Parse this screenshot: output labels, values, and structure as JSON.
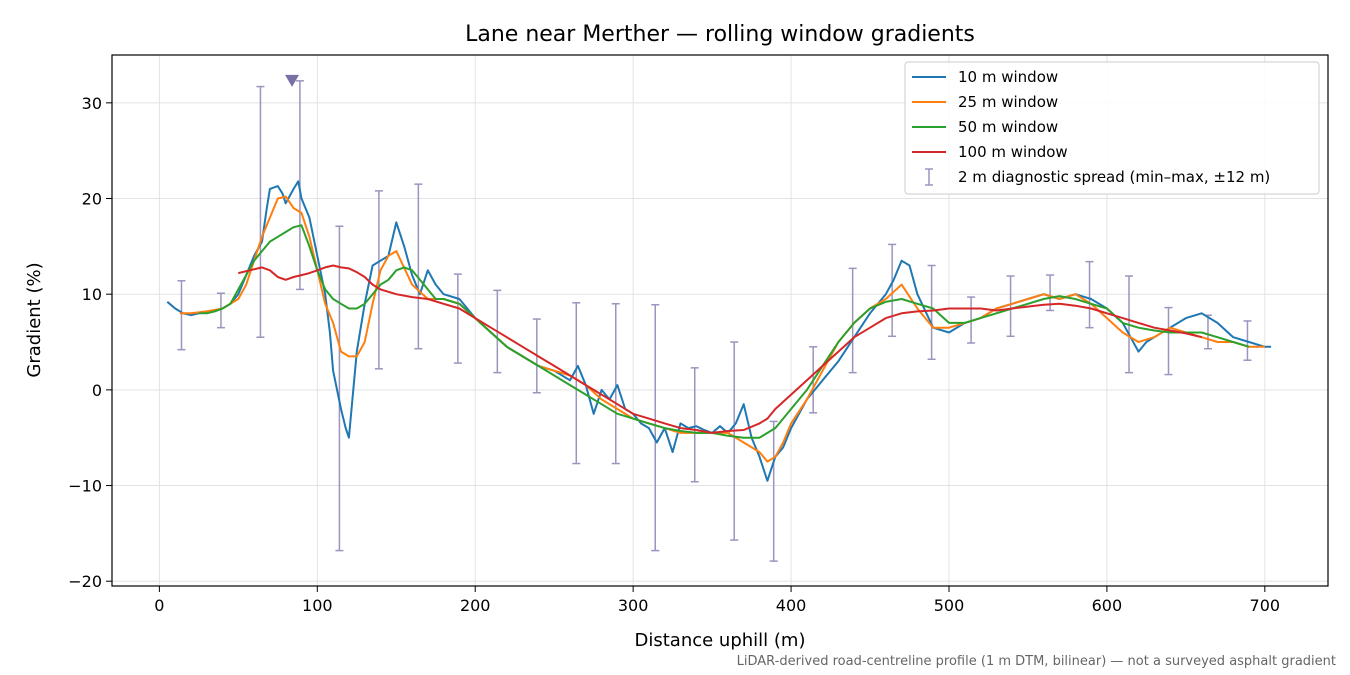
{
  "chart_data": {
    "type": "line",
    "title": "Lane near Merther — rolling window gradients",
    "xlabel": "Distance uphill (m)",
    "ylabel": "Gradient (%)",
    "xlim": [
      -30,
      740
    ],
    "ylim": [
      -20.5,
      35
    ],
    "xticks": [
      0,
      100,
      200,
      300,
      400,
      500,
      600,
      700
    ],
    "yticks": [
      -20,
      -10,
      0,
      10,
      20,
      30
    ],
    "grid": true,
    "legend_position": "top-right",
    "footnote": "LiDAR-derived road-centreline profile (1 m DTM, bilinear) — not a surveyed asphalt gradient",
    "series": [
      {
        "name": "10 m window",
        "color": "#1f77b4",
        "x": [
          5,
          10,
          15,
          20,
          25,
          30,
          35,
          40,
          45,
          50,
          55,
          60,
          65,
          68,
          70,
          75,
          78,
          80,
          85,
          88,
          90,
          95,
          100,
          105,
          108,
          110,
          115,
          118,
          120,
          125,
          130,
          135,
          140,
          145,
          150,
          155,
          160,
          165,
          170,
          175,
          180,
          190,
          200,
          210,
          220,
          230,
          240,
          250,
          260,
          265,
          270,
          275,
          280,
          285,
          290,
          295,
          300,
          305,
          310,
          315,
          320,
          325,
          330,
          335,
          340,
          345,
          350,
          355,
          360,
          365,
          370,
          375,
          380,
          385,
          390,
          395,
          400,
          410,
          420,
          430,
          440,
          450,
          460,
          465,
          470,
          475,
          480,
          490,
          500,
          510,
          520,
          530,
          540,
          550,
          560,
          570,
          580,
          590,
          600,
          610,
          615,
          620,
          625,
          630,
          640,
          650,
          660,
          670,
          680,
          690,
          700,
          704
        ],
        "y": [
          9.2,
          8.5,
          8.0,
          7.8,
          8.0,
          8.2,
          8.3,
          8.5,
          9.0,
          10.0,
          12.0,
          14.0,
          15.5,
          19.0,
          21.0,
          21.3,
          20.5,
          19.5,
          21.0,
          21.8,
          20.0,
          18.0,
          14.0,
          10.0,
          6.0,
          2.0,
          -2.0,
          -4.0,
          -5.0,
          4.0,
          9.0,
          13.0,
          13.5,
          14.0,
          17.5,
          15.0,
          12.0,
          10.0,
          12.5,
          11.0,
          10.0,
          9.5,
          7.5,
          6.0,
          4.5,
          3.5,
          2.5,
          2.0,
          1.0,
          2.5,
          0.5,
          -2.5,
          0.0,
          -1.0,
          0.5,
          -2.0,
          -2.5,
          -3.5,
          -4.0,
          -5.5,
          -4.0,
          -6.5,
          -3.5,
          -4.0,
          -3.8,
          -4.2,
          -4.5,
          -3.8,
          -4.5,
          -3.5,
          -1.5,
          -5.0,
          -7.0,
          -9.5,
          -7.0,
          -6.0,
          -4.0,
          -1.0,
          1.0,
          3.0,
          5.5,
          8.0,
          10.0,
          11.5,
          13.5,
          13.0,
          10.0,
          6.5,
          6.0,
          7.0,
          7.5,
          8.5,
          9.0,
          9.5,
          10.0,
          9.5,
          10.0,
          9.5,
          8.5,
          7.0,
          5.5,
          4.0,
          5.0,
          5.5,
          6.5,
          7.5,
          8.0,
          7.0,
          5.5,
          5.0,
          4.5,
          4.5
        ]
      },
      {
        "name": "25 m window",
        "color": "#ff7f0e",
        "x": [
          13,
          20,
          30,
          40,
          50,
          55,
          60,
          65,
          70,
          75,
          80,
          85,
          90,
          95,
          100,
          105,
          110,
          115,
          120,
          125,
          130,
          135,
          140,
          145,
          150,
          160,
          170,
          180,
          190,
          200,
          210,
          220,
          230,
          240,
          250,
          260,
          270,
          280,
          290,
          300,
          310,
          320,
          330,
          340,
          350,
          360,
          370,
          380,
          385,
          390,
          395,
          400,
          410,
          420,
          430,
          440,
          450,
          460,
          470,
          480,
          490,
          500,
          510,
          520,
          530,
          540,
          550,
          560,
          570,
          580,
          590,
          600,
          610,
          620,
          630,
          640,
          650,
          660,
          670,
          680,
          690,
          700
        ],
        "y": [
          8.0,
          8.0,
          8.2,
          8.5,
          9.5,
          11.0,
          13.5,
          16.0,
          18.0,
          20.0,
          20.2,
          19.0,
          18.5,
          16.0,
          12.5,
          9.0,
          7.0,
          4.0,
          3.5,
          3.5,
          5.0,
          9.0,
          12.5,
          14.0,
          14.5,
          11.0,
          9.5,
          9.5,
          9.0,
          7.5,
          6.0,
          4.5,
          3.5,
          2.5,
          2.0,
          1.5,
          0.5,
          -1.0,
          -2.0,
          -3.0,
          -3.5,
          -4.0,
          -4.5,
          -4.5,
          -4.5,
          -4.5,
          -5.5,
          -6.5,
          -7.5,
          -7.0,
          -5.5,
          -3.5,
          -1.0,
          2.0,
          5.0,
          7.0,
          8.5,
          9.5,
          11.0,
          8.5,
          6.5,
          6.5,
          7.0,
          7.5,
          8.5,
          9.0,
          9.5,
          10.0,
          9.5,
          10.0,
          9.0,
          7.5,
          6.0,
          5.0,
          5.5,
          6.5,
          6.0,
          5.5,
          5.0,
          5.0,
          4.5,
          4.5
        ]
      },
      {
        "name": "50 m window",
        "color": "#2ca02c",
        "x": [
          25,
          30,
          35,
          40,
          45,
          50,
          55,
          60,
          65,
          70,
          75,
          80,
          85,
          90,
          95,
          100,
          105,
          110,
          115,
          120,
          125,
          130,
          135,
          140,
          145,
          150,
          155,
          160,
          165,
          170,
          175,
          180,
          190,
          200,
          210,
          220,
          230,
          240,
          250,
          260,
          270,
          280,
          290,
          300,
          310,
          320,
          330,
          340,
          350,
          360,
          370,
          380,
          390,
          400,
          410,
          420,
          430,
          440,
          450,
          460,
          470,
          480,
          490,
          500,
          510,
          520,
          530,
          540,
          550,
          560,
          570,
          580,
          590,
          600,
          610,
          620,
          630,
          640,
          650,
          660,
          670,
          680,
          690
        ],
        "y": [
          8.0,
          8.0,
          8.2,
          8.5,
          9.0,
          10.5,
          12.0,
          13.5,
          14.5,
          15.5,
          16.0,
          16.5,
          17.0,
          17.2,
          15.0,
          12.5,
          10.5,
          9.5,
          9.0,
          8.5,
          8.5,
          9.0,
          10.0,
          11.0,
          11.5,
          12.5,
          12.8,
          12.5,
          11.5,
          10.5,
          9.5,
          9.5,
          9.0,
          7.5,
          6.0,
          4.5,
          3.5,
          2.5,
          1.5,
          0.5,
          -0.5,
          -1.5,
          -2.5,
          -3.0,
          -3.5,
          -4.0,
          -4.3,
          -4.5,
          -4.5,
          -4.8,
          -5.0,
          -5.0,
          -4.0,
          -2.0,
          0.0,
          2.5,
          5.0,
          7.0,
          8.5,
          9.2,
          9.5,
          9.0,
          8.5,
          7.0,
          7.0,
          7.5,
          8.0,
          8.5,
          9.0,
          9.5,
          9.8,
          9.5,
          9.0,
          8.5,
          7.0,
          6.5,
          6.2,
          6.0,
          6.0,
          6.0,
          5.5,
          5.0,
          4.5
        ]
      },
      {
        "name": "100 m window",
        "color": "#d62728",
        "x": [
          50,
          55,
          60,
          65,
          70,
          75,
          80,
          85,
          90,
          95,
          100,
          105,
          110,
          115,
          120,
          125,
          130,
          135,
          140,
          150,
          160,
          170,
          180,
          190,
          200,
          210,
          220,
          230,
          240,
          250,
          260,
          270,
          280,
          290,
          300,
          310,
          320,
          330,
          340,
          350,
          360,
          370,
          380,
          385,
          390,
          400,
          410,
          420,
          430,
          440,
          450,
          460,
          470,
          480,
          490,
          500,
          510,
          520,
          530,
          540,
          550,
          560,
          570,
          580,
          590,
          600,
          610,
          620,
          630,
          640,
          650,
          660
        ],
        "y": [
          12.2,
          12.4,
          12.6,
          12.8,
          12.5,
          11.8,
          11.5,
          11.8,
          12.0,
          12.2,
          12.5,
          12.8,
          13.0,
          12.8,
          12.7,
          12.3,
          11.8,
          11.0,
          10.5,
          10.0,
          9.7,
          9.5,
          9.0,
          8.5,
          7.5,
          6.5,
          5.5,
          4.5,
          3.5,
          2.5,
          1.5,
          0.5,
          -0.5,
          -1.5,
          -2.5,
          -3.0,
          -3.5,
          -4.0,
          -4.2,
          -4.5,
          -4.3,
          -4.2,
          -3.5,
          -3.0,
          -2.0,
          -0.5,
          1.0,
          2.5,
          4.0,
          5.5,
          6.5,
          7.5,
          8.0,
          8.2,
          8.3,
          8.5,
          8.5,
          8.5,
          8.3,
          8.5,
          8.7,
          8.9,
          9.0,
          8.8,
          8.5,
          8.0,
          7.5,
          7.0,
          6.5,
          6.2,
          5.9,
          5.5
        ]
      }
    ],
    "diagnostic_spread": {
      "name": "2 m diagnostic spread (min–max, ±12 m)",
      "color": "#9b94bd",
      "x": [
        14,
        39,
        64,
        89,
        114,
        139,
        164,
        189,
        214,
        239,
        264,
        289,
        314,
        339,
        364,
        389,
        414,
        439,
        464,
        489,
        514,
        539,
        564,
        589,
        614,
        639,
        664,
        689
      ],
      "low": [
        4.2,
        6.5,
        5.5,
        10.5,
        -16.8,
        2.2,
        4.3,
        2.8,
        1.8,
        -0.3,
        -7.7,
        -7.7,
        -16.8,
        -9.6,
        -15.7,
        -17.9,
        -2.4,
        1.8,
        5.6,
        3.2,
        4.9,
        5.6,
        8.3,
        6.5,
        1.8,
        1.6,
        4.3,
        3.1
      ],
      "high": [
        11.4,
        10.1,
        31.7,
        32.3,
        17.1,
        20.8,
        21.5,
        12.1,
        10.4,
        7.4,
        9.1,
        9.0,
        8.9,
        2.3,
        5.0,
        -3.3,
        4.5,
        12.7,
        15.2,
        13.0,
        9.7,
        11.9,
        12.0,
        13.4,
        11.9,
        8.6,
        7.8,
        7.2
      ],
      "clipped_marker": {
        "x": 84,
        "y": 32.3
      }
    }
  }
}
